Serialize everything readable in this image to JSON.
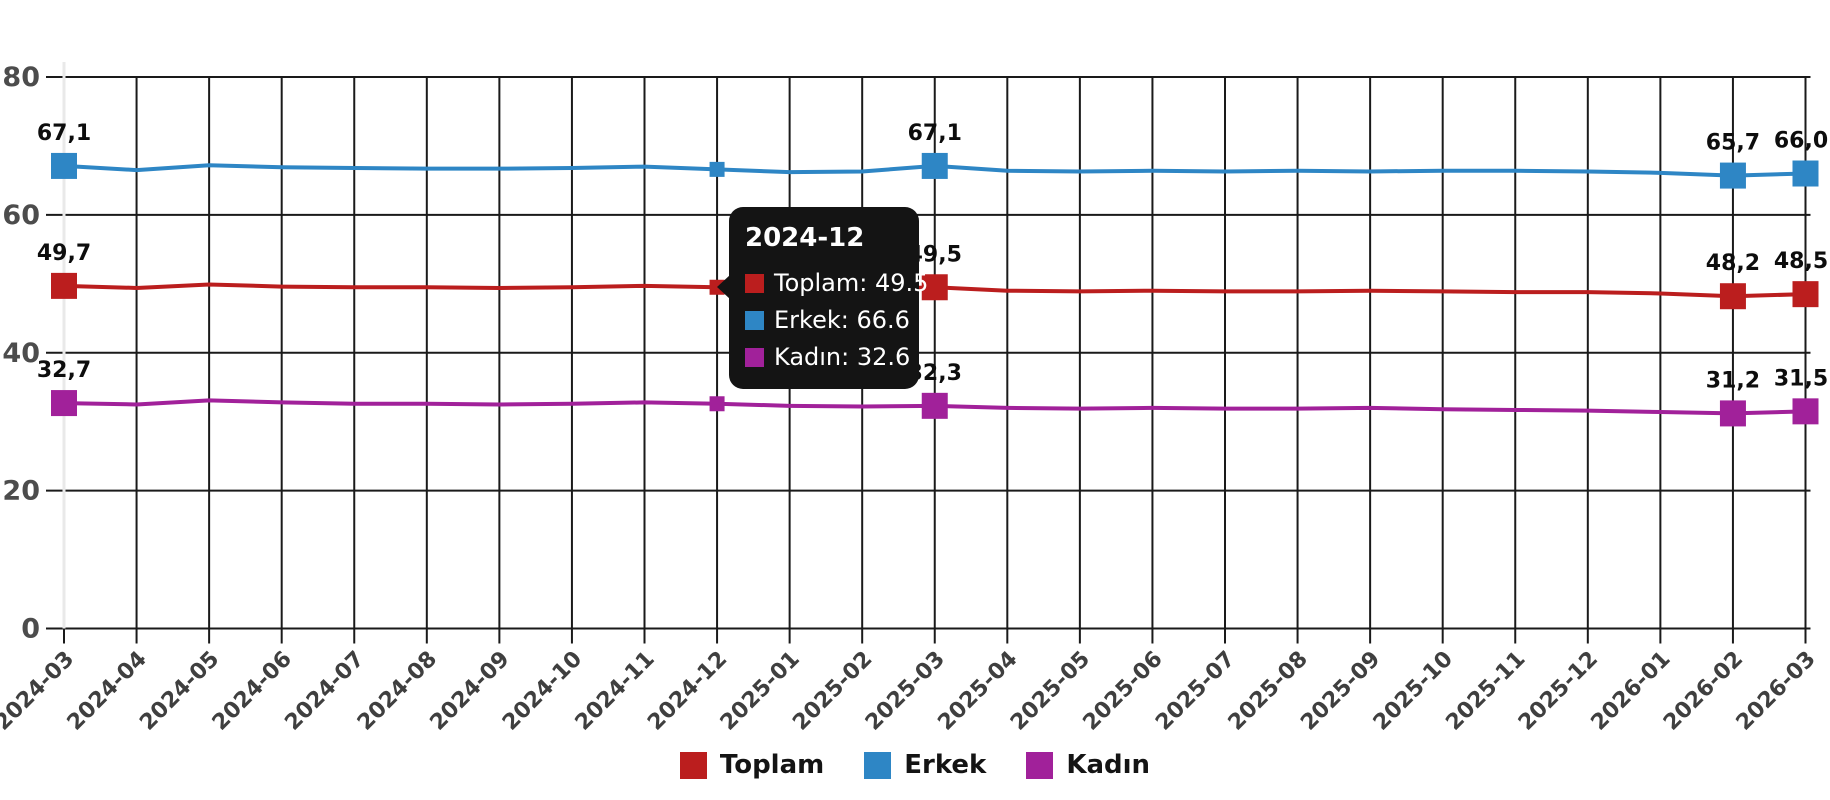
{
  "chart_data": {
    "type": "line",
    "title": "",
    "xlabel": "",
    "ylabel": "",
    "ylim": [
      0,
      80
    ],
    "grid": true,
    "legend_position": "bottom",
    "y_ticks": [
      0,
      20,
      40,
      60,
      80
    ],
    "x_categories": [
      "2024-03",
      "2024-04",
      "2024-05",
      "2024-06",
      "2024-07",
      "2024-08",
      "2024-09",
      "2024-10",
      "2024-11",
      "2024-12",
      "2025-01",
      "2025-02",
      "2025-03",
      "2025-04",
      "2025-05",
      "2025-06",
      "2025-07",
      "2025-08",
      "2025-09",
      "2025-10",
      "2025-11",
      "2025-12",
      "2026-01",
      "2026-02",
      "2026-03"
    ],
    "series": [
      {
        "name": "Toplam",
        "color": "#bb1e1e",
        "values": [
          49.7,
          49.4,
          49.9,
          49.6,
          49.5,
          49.5,
          49.4,
          49.5,
          49.7,
          49.5,
          49.2,
          49.2,
          49.5,
          49.0,
          48.9,
          49.0,
          48.9,
          48.9,
          49.0,
          48.9,
          48.8,
          48.8,
          48.6,
          48.2,
          48.5
        ],
        "point_labels": {
          "0": "49,7",
          "12": "49,5",
          "23": "48,2",
          "24": "48,5"
        }
      },
      {
        "name": "Erkek",
        "color": "#2e86c5",
        "values": [
          67.1,
          66.5,
          67.2,
          66.9,
          66.8,
          66.7,
          66.7,
          66.8,
          67.0,
          66.6,
          66.2,
          66.3,
          67.1,
          66.4,
          66.3,
          66.4,
          66.3,
          66.4,
          66.3,
          66.4,
          66.4,
          66.3,
          66.1,
          65.7,
          66.0
        ],
        "point_labels": {
          "0": "67,1",
          "12": "67,1",
          "23": "65,7",
          "24": "66,0"
        }
      },
      {
        "name": "Kadın",
        "color": "#a1219a",
        "values": [
          32.7,
          32.5,
          33.1,
          32.8,
          32.6,
          32.6,
          32.5,
          32.6,
          32.8,
          32.6,
          32.3,
          32.2,
          32.3,
          32.0,
          31.9,
          32.0,
          31.9,
          31.9,
          32.0,
          31.8,
          31.7,
          31.6,
          31.4,
          31.2,
          31.5
        ],
        "point_labels": {
          "0": "32,7",
          "12": "32,3",
          "23": "31,2",
          "24": "31,5"
        }
      }
    ],
    "big_marker_indices": [
      0,
      12,
      23,
      24
    ],
    "small_marker_indices": [
      9
    ],
    "tooltip": {
      "x_index": 9,
      "title": "2024-12",
      "rows": [
        {
          "label": "Toplam",
          "value": "49.5",
          "text": "Toplam: 49.5"
        },
        {
          "label": "Erkek",
          "value": "66.6",
          "text": "Erkek: 66.6"
        },
        {
          "label": "Kadın",
          "value": "32.6",
          "text": "Kadın: 32.6"
        }
      ]
    }
  }
}
